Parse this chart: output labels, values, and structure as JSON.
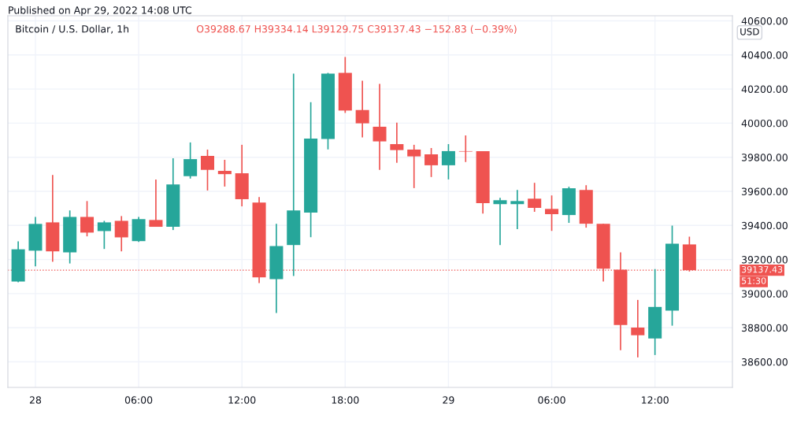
{
  "chart_data": {
    "type": "candlestick",
    "title": "Bitcoin / U.S. Dollar, 1h",
    "subtitle": "O39288.67 H39334.14 L39129.75 C39137.43 −152.83 (−0.39%)",
    "ylabel": "USD",
    "annotations": [
      "Published on Apr 29, 2022 14:08 UTC",
      "51:30"
    ],
    "x": [
      "2022-04-27T23:00",
      "2022-04-28T00:00",
      "2022-04-28T01:00",
      "2022-04-28T02:00",
      "2022-04-28T03:00",
      "2022-04-28T04:00",
      "2022-04-28T05:00",
      "2022-04-28T06:00",
      "2022-04-28T07:00",
      "2022-04-28T08:00",
      "2022-04-28T09:00",
      "2022-04-28T10:00",
      "2022-04-28T11:00",
      "2022-04-28T12:00",
      "2022-04-28T13:00",
      "2022-04-28T14:00",
      "2022-04-28T15:00",
      "2022-04-28T16:00",
      "2022-04-28T17:00",
      "2022-04-28T18:00",
      "2022-04-28T19:00",
      "2022-04-28T20:00",
      "2022-04-28T21:00",
      "2022-04-28T22:00",
      "2022-04-28T23:00",
      "2022-04-29T00:00",
      "2022-04-29T01:00",
      "2022-04-29T02:00",
      "2022-04-29T03:00",
      "2022-04-29T04:00",
      "2022-04-29T05:00",
      "2022-04-29T06:00",
      "2022-04-29T07:00",
      "2022-04-29T08:00",
      "2022-04-29T09:00",
      "2022-04-29T10:00",
      "2022-04-29T11:00",
      "2022-04-29T12:00",
      "2022-04-29T13:00",
      "2022-04-29T14:00"
    ],
    "ohlc": [
      [
        39071,
        39307,
        39067,
        39260
      ],
      [
        39252,
        39450,
        39160,
        39409
      ],
      [
        39418,
        39696,
        39187,
        39248
      ],
      [
        39242,
        39488,
        39177,
        39450
      ],
      [
        39450,
        39543,
        39336,
        39358
      ],
      [
        39367,
        39427,
        39262,
        39418
      ],
      [
        39427,
        39455,
        39248,
        39330
      ],
      [
        39308,
        39450,
        39303,
        39437
      ],
      [
        39432,
        39669,
        39392,
        39392
      ],
      [
        39392,
        39794,
        39373,
        39641
      ],
      [
        39689,
        39887,
        39675,
        39789
      ],
      [
        39808,
        39845,
        39605,
        39726
      ],
      [
        39720,
        39785,
        39628,
        39701
      ],
      [
        39706,
        39873,
        39512,
        39554
      ],
      [
        39534,
        39567,
        39062,
        39095
      ],
      [
        39085,
        39409,
        38886,
        39279
      ],
      [
        39285,
        40290,
        39104,
        39488
      ],
      [
        39475,
        40123,
        39331,
        39910
      ],
      [
        39907,
        40295,
        39846,
        40290
      ],
      [
        40295,
        40388,
        40060,
        40074
      ],
      [
        40077,
        40249,
        39916,
        39999
      ],
      [
        39979,
        40230,
        39726,
        39893
      ],
      [
        39877,
        40003,
        39767,
        39842
      ],
      [
        39845,
        39873,
        39619,
        39805
      ],
      [
        39817,
        39854,
        39684,
        39753
      ],
      [
        39753,
        39877,
        39670,
        39836
      ],
      [
        39836,
        39928,
        39772,
        39833
      ],
      [
        39836,
        39836,
        39470,
        39531
      ],
      [
        39525,
        39562,
        39285,
        39548
      ],
      [
        39525,
        39608,
        39378,
        39543
      ],
      [
        39557,
        39650,
        39480,
        39503
      ],
      [
        39497,
        39576,
        39368,
        39466
      ],
      [
        39461,
        39627,
        39415,
        39618
      ],
      [
        39608,
        39636,
        39387,
        39410
      ],
      [
        39409,
        39409,
        39071,
        39146
      ],
      [
        39140,
        39242,
        38668,
        38816
      ],
      [
        38801,
        38963,
        38626,
        38756
      ],
      [
        38737,
        39144,
        38640,
        38922
      ],
      [
        38900,
        39399,
        38812,
        39293
      ],
      [
        39288.67,
        39334.14,
        39129.75,
        39137.43
      ]
    ],
    "colors": [
      "#26a69a",
      "#26a69a",
      "#ef5350",
      "#26a69a",
      "#ef5350",
      "#26a69a",
      "#ef5350",
      "#26a69a",
      "#ef5350",
      "#26a69a",
      "#26a69a",
      "#ef5350",
      "#ef5350",
      "#ef5350",
      "#ef5350",
      "#26a69a",
      "#26a69a",
      "#26a69a",
      "#26a69a",
      "#ef5350",
      "#ef5350",
      "#ef5350",
      "#ef5350",
      "#ef5350",
      "#ef5350",
      "#26a69a",
      "#ef5350",
      "#ef5350",
      "#26a69a",
      "#26a69a",
      "#ef5350",
      "#ef5350",
      "#26a69a",
      "#ef5350",
      "#ef5350",
      "#ef5350",
      "#ef5350",
      "#26a69a",
      "#26a69a",
      "#ef5350"
    ],
    "xlim": [
      "2022-04-27T22:24",
      "2022-04-29T16:30"
    ],
    "ylim": [
      38450,
      40630
    ],
    "xticks": [
      {
        "value": "2022-04-28T00:00",
        "label": "28"
      },
      {
        "value": "2022-04-28T06:00",
        "label": "06:00"
      },
      {
        "value": "2022-04-28T12:00",
        "label": "12:00"
      },
      {
        "value": "2022-04-28T18:00",
        "label": "18:00"
      },
      {
        "value": "2022-04-29T00:00",
        "label": "29"
      },
      {
        "value": "2022-04-29T06:00",
        "label": "06:00"
      },
      {
        "value": "2022-04-29T12:00",
        "label": "12:00"
      }
    ],
    "yticks": [
      {
        "value": 38600,
        "label": "38600.00"
      },
      {
        "value": 38800,
        "label": "38800.00"
      },
      {
        "value": 39000,
        "label": "39000.00"
      },
      {
        "value": 39200,
        "label": "39200.00"
      },
      {
        "value": 39400,
        "label": "39400.00"
      },
      {
        "value": 39600,
        "label": "39600.00"
      },
      {
        "value": 39800,
        "label": "39800.00"
      },
      {
        "value": 40000,
        "label": "40000.00"
      },
      {
        "value": 40200,
        "label": "40200.00"
      },
      {
        "value": 40400,
        "label": "40400.00"
      },
      {
        "value": 40600,
        "label": "40600.00"
      }
    ],
    "grid": true,
    "ref_lines": [
      {
        "axis": "y",
        "value": 39137.43,
        "label": "39137.43",
        "color": "#ef5350",
        "line_style": "dotted"
      }
    ]
  }
}
